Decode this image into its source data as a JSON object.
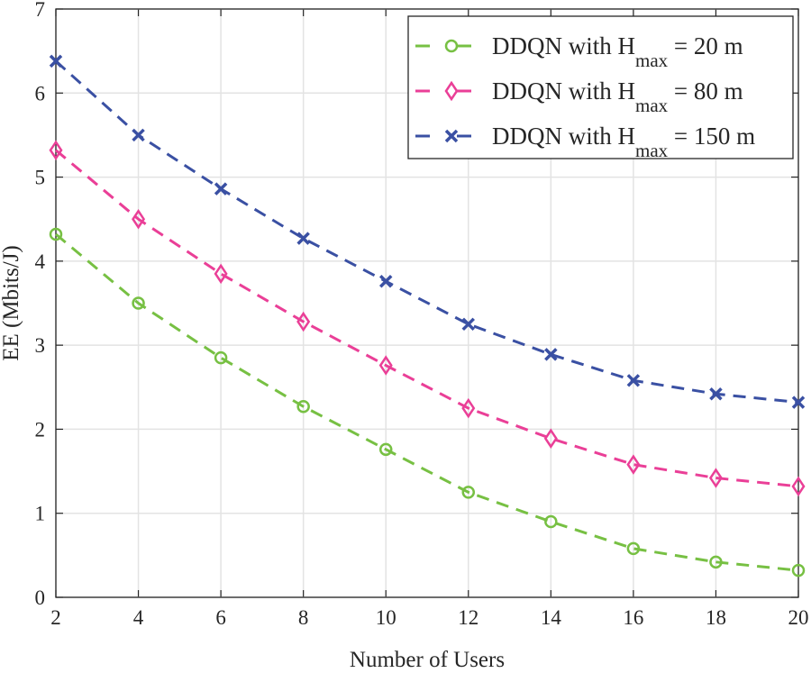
{
  "chart_data": {
    "type": "line",
    "xlabel": "Number of Users",
    "ylabel": "EE (Mbits/J)",
    "xlim": [
      2,
      20
    ],
    "ylim": [
      0,
      7
    ],
    "xticks": [
      2,
      4,
      6,
      8,
      10,
      12,
      14,
      16,
      18,
      20
    ],
    "yticks": [
      0,
      1,
      2,
      3,
      4,
      5,
      6,
      7
    ],
    "grid": true,
    "legend_position": "top-right",
    "x": [
      2,
      4,
      6,
      8,
      10,
      12,
      14,
      16,
      18,
      20
    ],
    "series": [
      {
        "name_main": "DDQN with H",
        "name_sub": "max",
        "name_tail": "= 20 m",
        "color": "#77c043",
        "marker": "circle",
        "line": "dashed",
        "values": [
          4.32,
          3.5,
          2.85,
          2.27,
          1.76,
          1.25,
          0.9,
          0.58,
          0.42,
          0.32
        ]
      },
      {
        "name_main": "DDQN with H",
        "name_sub": "max",
        "name_tail": "= 80 m",
        "color": "#ea3f97",
        "marker": "diamond",
        "line": "dashed",
        "values": [
          5.32,
          4.5,
          3.85,
          3.28,
          2.76,
          2.25,
          1.89,
          1.58,
          1.42,
          1.32
        ]
      },
      {
        "name_main": "DDQN with H",
        "name_sub": "max",
        "name_tail": "= 150 m",
        "color": "#3a50a3",
        "marker": "x",
        "line": "dashed",
        "values": [
          6.38,
          5.5,
          4.86,
          4.27,
          3.76,
          3.25,
          2.89,
          2.58,
          2.42,
          2.32
        ]
      }
    ]
  }
}
